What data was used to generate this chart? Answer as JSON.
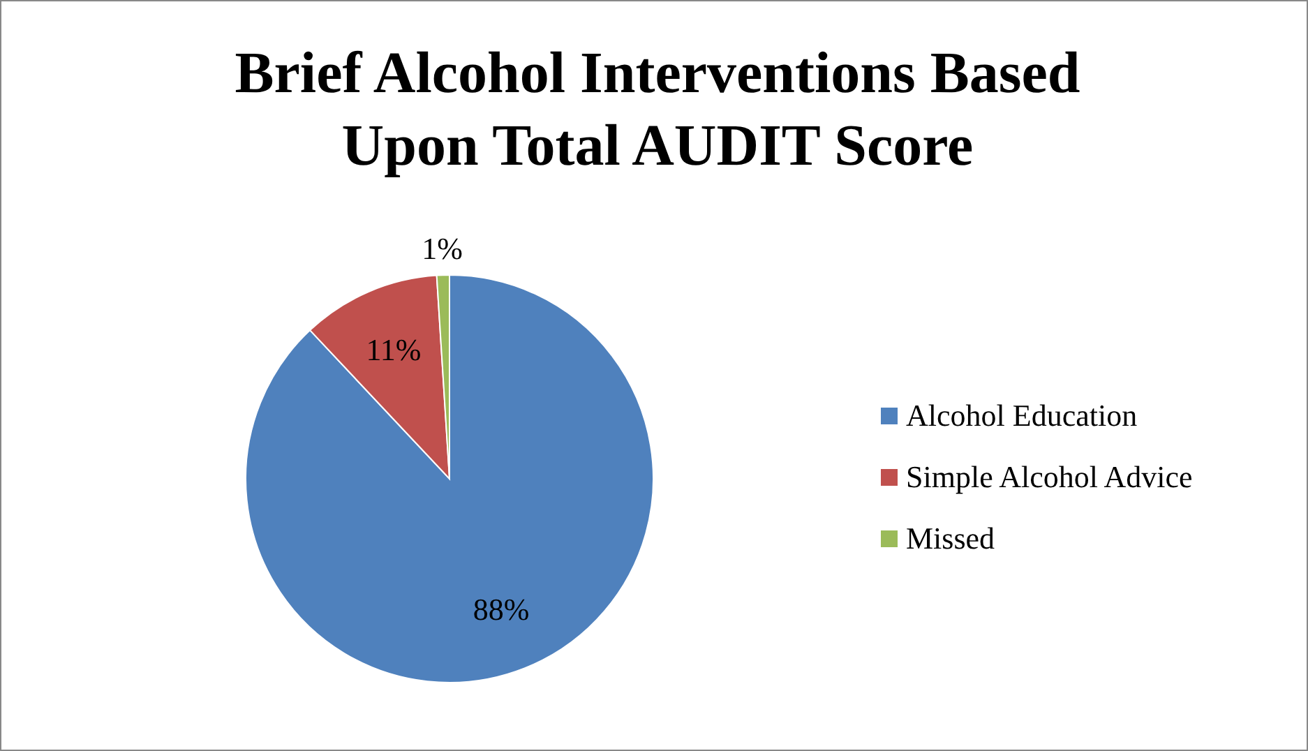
{
  "chart_data": {
    "type": "pie",
    "title": "Brief Alcohol Interventions Based Upon Total AUDIT Score",
    "categories": [
      "Alcohol Education",
      "Simple Alcohol Advice",
      "Missed"
    ],
    "values": [
      88,
      11,
      1
    ],
    "colors": [
      "#4f81bd",
      "#c0504d",
      "#9bbb59"
    ],
    "value_labels": [
      "88%",
      "11%",
      "1%"
    ],
    "legend": "right"
  }
}
